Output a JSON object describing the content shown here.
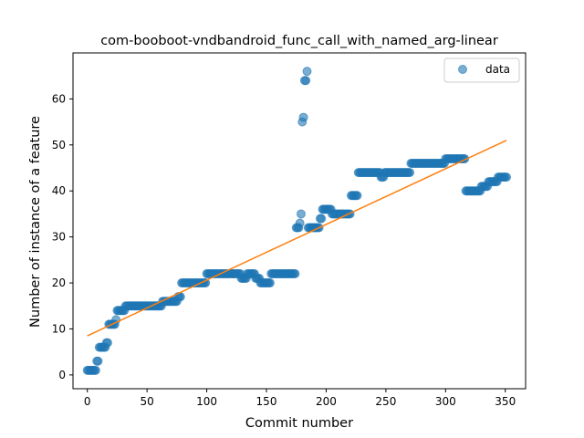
{
  "chart_data": {
    "type": "scatter",
    "title": "com-booboot-vndbandroid_func_call_with_named_arg-linear",
    "xlabel": "Commit number",
    "ylabel": "Number of instance of a feature",
    "xlim": [
      -12,
      367
    ],
    "ylim": [
      -3,
      70
    ],
    "xticks": [
      0,
      50,
      100,
      150,
      200,
      250,
      300,
      350
    ],
    "yticks": [
      0,
      10,
      20,
      30,
      40,
      50,
      60
    ],
    "legend": {
      "placement": "top-right",
      "entries": [
        "data"
      ]
    },
    "colors": {
      "data": "#1f77b4",
      "fit": "#ff7f0e"
    },
    "grid": false,
    "data_segments": [
      {
        "from": 0,
        "to": 7,
        "value": 1
      },
      {
        "from": 8,
        "to": 9,
        "value": 3
      },
      {
        "from": 10,
        "to": 15,
        "value": 6
      },
      {
        "from": 16,
        "to": 17,
        "value": 7
      },
      {
        "from": 18,
        "to": 23,
        "value": 11
      },
      {
        "from": 24,
        "to": 24,
        "value": 12
      },
      {
        "from": 25,
        "to": 31,
        "value": 14
      },
      {
        "from": 32,
        "to": 62,
        "value": 15
      },
      {
        "from": 63,
        "to": 75,
        "value": 16
      },
      {
        "from": 76,
        "to": 78,
        "value": 17
      },
      {
        "from": 79,
        "to": 99,
        "value": 20
      },
      {
        "from": 100,
        "to": 128,
        "value": 22
      },
      {
        "from": 129,
        "to": 133,
        "value": 21
      },
      {
        "from": 134,
        "to": 140,
        "value": 22
      },
      {
        "from": 141,
        "to": 144,
        "value": 21
      },
      {
        "from": 145,
        "to": 153,
        "value": 20
      },
      {
        "from": 154,
        "to": 174,
        "value": 22
      },
      {
        "from": 175,
        "to": 177,
        "value": 32
      },
      {
        "from": 178,
        "to": 178,
        "value": 33
      },
      {
        "from": 179,
        "to": 179,
        "value": 35
      },
      {
        "from": 180,
        "to": 180,
        "value": 55
      },
      {
        "from": 181,
        "to": 181,
        "value": 56
      },
      {
        "from": 182,
        "to": 183,
        "value": 64
      },
      {
        "from": 184,
        "to": 184,
        "value": 66
      },
      {
        "from": 185,
        "to": 194,
        "value": 32
      },
      {
        "from": 195,
        "to": 196,
        "value": 34
      },
      {
        "from": 197,
        "to": 204,
        "value": 36
      },
      {
        "from": 205,
        "to": 220,
        "value": 35
      },
      {
        "from": 221,
        "to": 226,
        "value": 39
      },
      {
        "from": 227,
        "to": 245,
        "value": 44
      },
      {
        "from": 246,
        "to": 248,
        "value": 43
      },
      {
        "from": 249,
        "to": 270,
        "value": 44
      },
      {
        "from": 271,
        "to": 299,
        "value": 46
      },
      {
        "from": 300,
        "to": 316,
        "value": 47
      },
      {
        "from": 317,
        "to": 329,
        "value": 40
      },
      {
        "from": 330,
        "to": 335,
        "value": 41
      },
      {
        "from": 336,
        "to": 343,
        "value": 42
      },
      {
        "from": 344,
        "to": 351,
        "value": 43
      }
    ],
    "fit_line": {
      "x": [
        0,
        351
      ],
      "y": [
        8.5,
        51
      ]
    }
  }
}
